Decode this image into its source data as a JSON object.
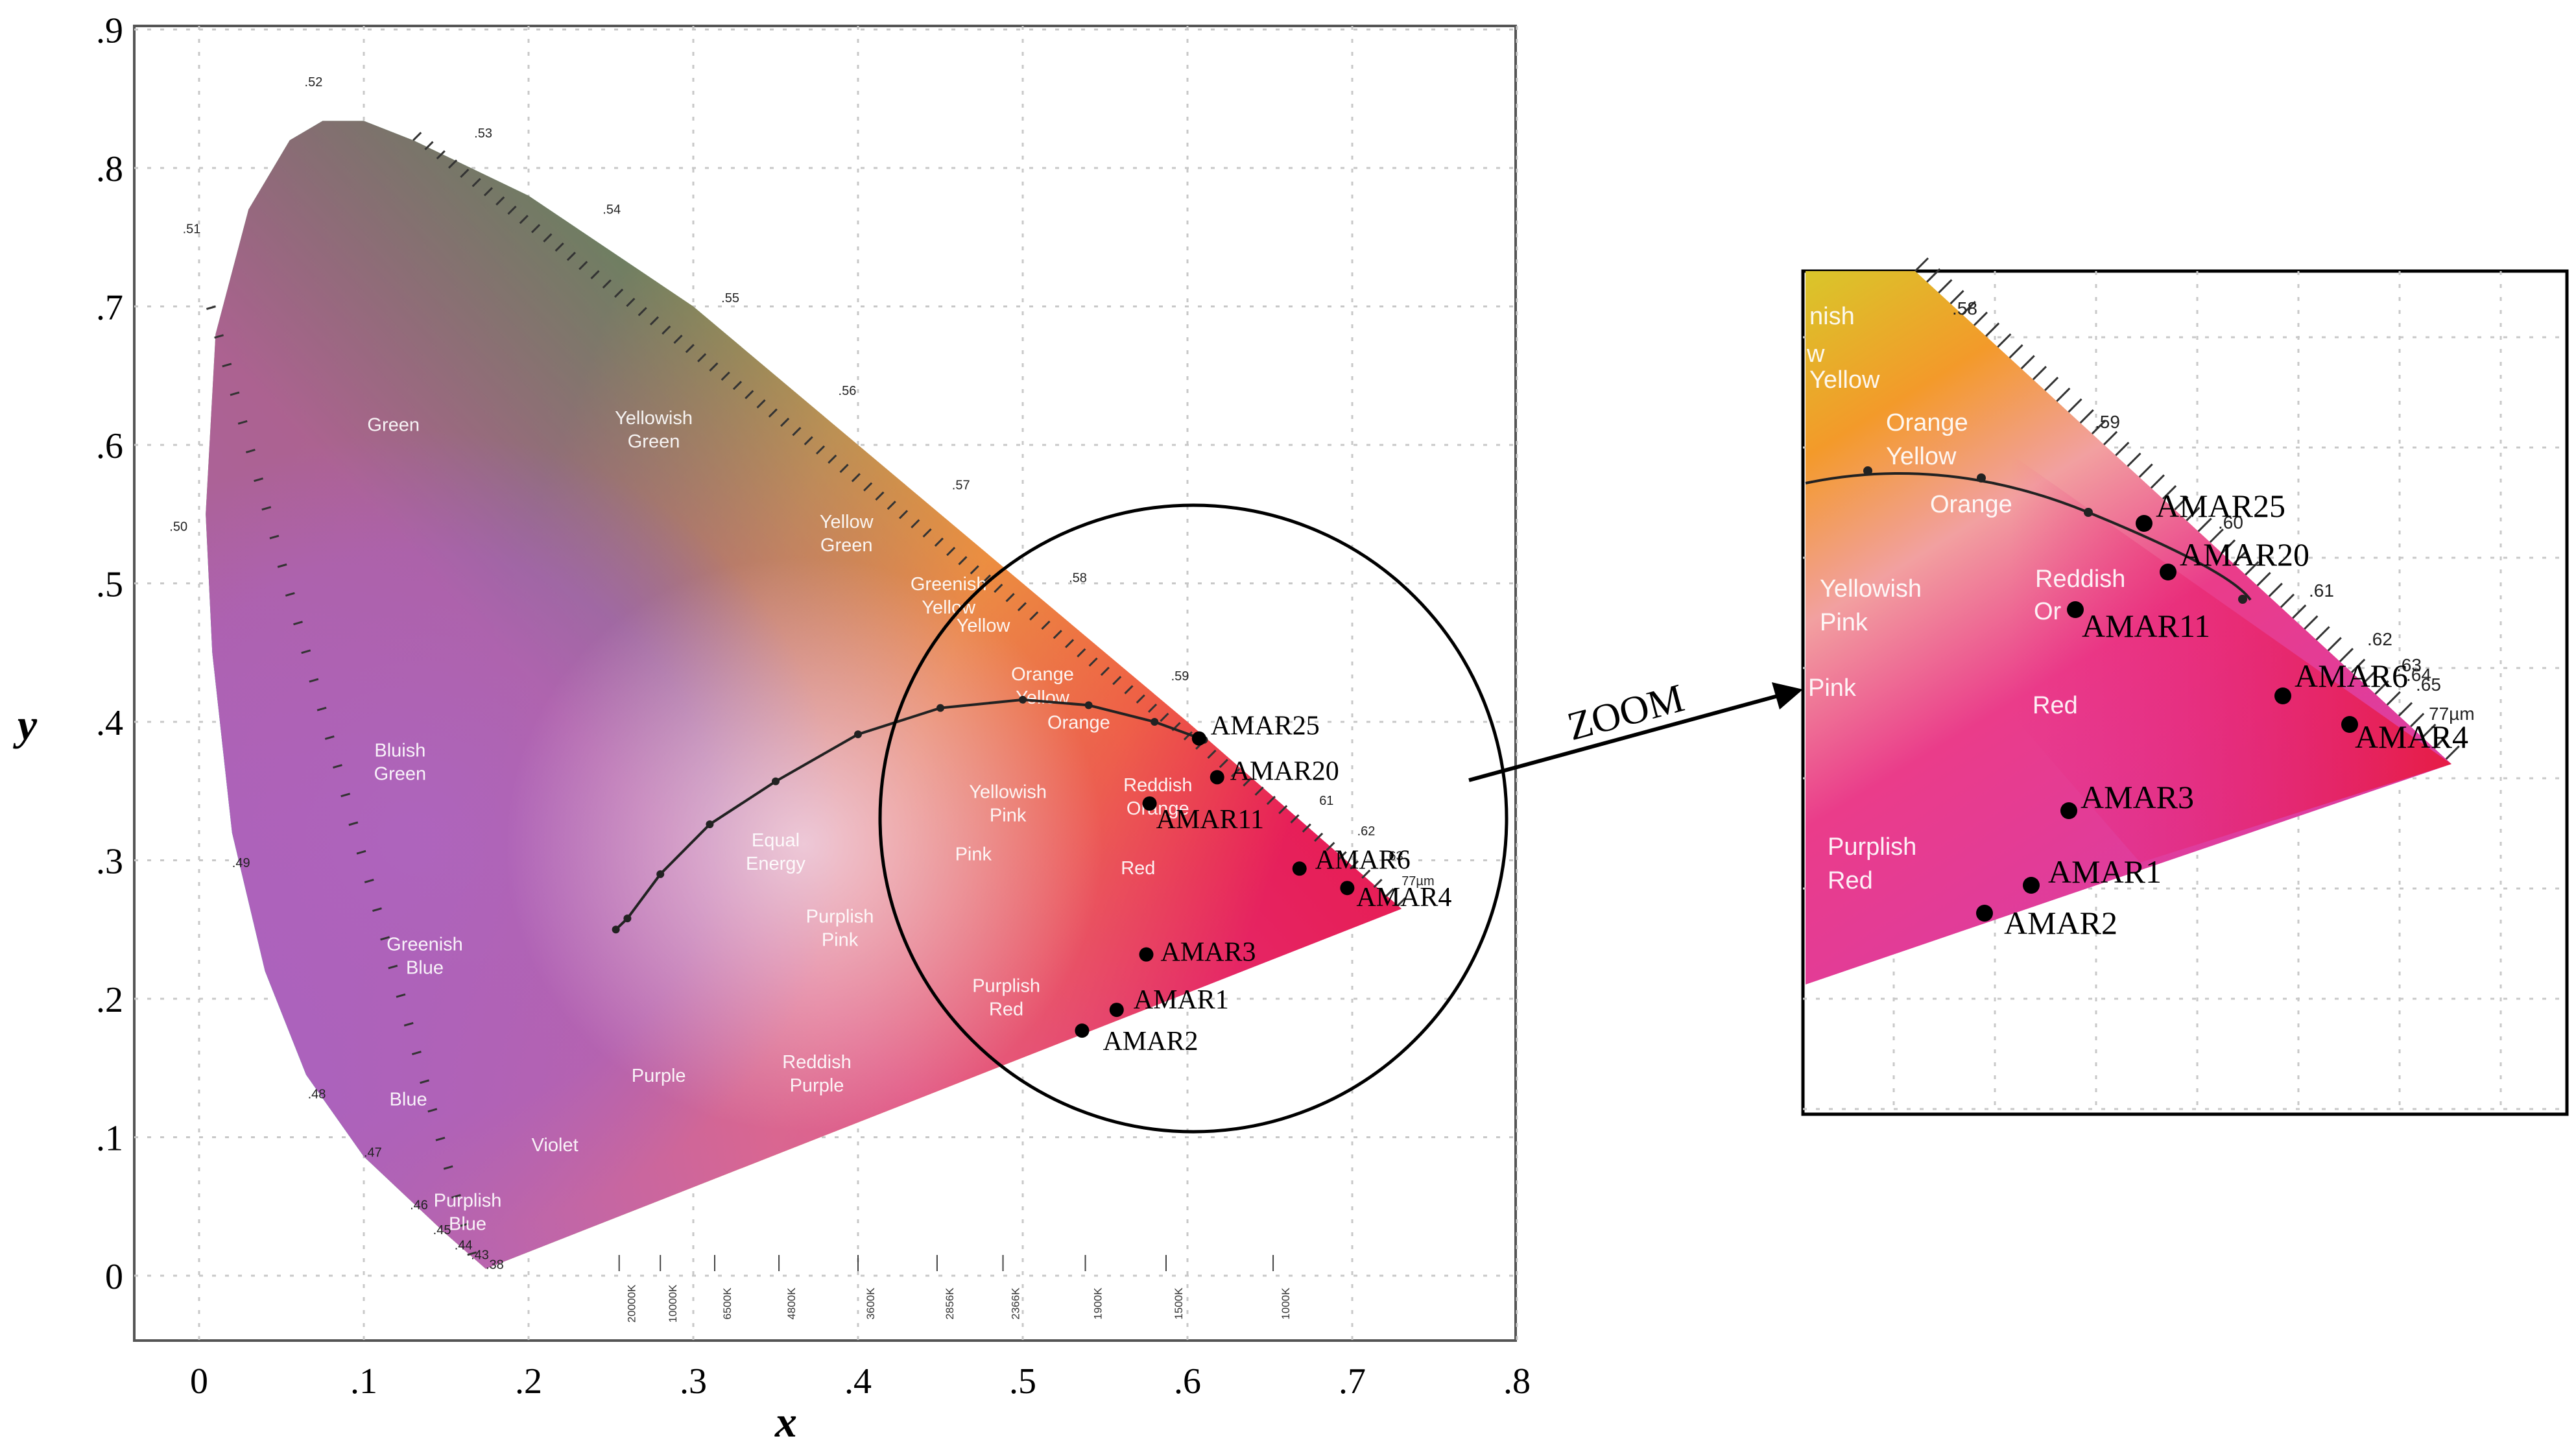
{
  "chart_data": [
    {
      "type": "scatter",
      "title": "",
      "xlabel": "x",
      "ylabel": "y",
      "xlim": [
        -0.04,
        0.8
      ],
      "ylim": [
        -0.05,
        0.9
      ],
      "grid": true,
      "x_ticks": [
        "0",
        ".1",
        ".2",
        ".3",
        ".4",
        ".5",
        ".6",
        ".7",
        ".8"
      ],
      "y_ticks": [
        "0",
        ".1",
        ".2",
        ".3",
        ".4",
        ".5",
        ".6",
        ".7",
        ".8",
        ".9"
      ],
      "wavelength_labels": [
        {
          "text": ".38",
          "x": 0.174,
          "y": 0.005
        },
        {
          "text": ".43",
          "x": 0.165,
          "y": 0.012
        },
        {
          "text": ".44",
          "x": 0.155,
          "y": 0.019
        },
        {
          "text": ".45",
          "x": 0.142,
          "y": 0.03
        },
        {
          "text": ".46",
          "x": 0.128,
          "y": 0.048
        },
        {
          "text": ".47",
          "x": 0.1,
          "y": 0.086
        },
        {
          "text": ".48",
          "x": 0.066,
          "y": 0.128
        },
        {
          "text": ".49",
          "x": 0.02,
          "y": 0.295
        },
        {
          "text": ".50",
          "x": -0.018,
          "y": 0.538
        },
        {
          "text": ".51",
          "x": -0.01,
          "y": 0.753
        },
        {
          "text": ".52",
          "x": 0.064,
          "y": 0.859
        },
        {
          "text": ".53",
          "x": 0.167,
          "y": 0.822
        },
        {
          "text": ".54",
          "x": 0.245,
          "y": 0.767
        },
        {
          "text": ".55",
          "x": 0.317,
          "y": 0.703
        },
        {
          "text": ".56",
          "x": 0.388,
          "y": 0.636
        },
        {
          "text": ".57",
          "x": 0.457,
          "y": 0.568
        },
        {
          "text": ".58",
          "x": 0.528,
          "y": 0.501
        },
        {
          "text": ".59",
          "x": 0.59,
          "y": 0.43
        },
        {
          "text": "61",
          "x": 0.68,
          "y": 0.34
        },
        {
          "text": ".62",
          "x": 0.703,
          "y": 0.318
        },
        {
          "text": ".63",
          "x": 0.72,
          "y": 0.3
        },
        {
          "text": "77µm",
          "x": 0.73,
          "y": 0.282
        }
      ],
      "regions": [
        {
          "label": "Green",
          "x": 0.118,
          "y": 0.61
        },
        {
          "label": "Yellowish Green",
          "x": 0.276,
          "y": 0.615
        },
        {
          "label": "Yellow Green",
          "x": 0.393,
          "y": 0.54
        },
        {
          "label": "Greenish Yellow",
          "x": 0.455,
          "y": 0.495
        },
        {
          "label": "Yellow",
          "x": 0.476,
          "y": 0.465
        },
        {
          "label": "Orange Yellow",
          "x": 0.512,
          "y": 0.43
        },
        {
          "label": "Orange",
          "x": 0.534,
          "y": 0.395
        },
        {
          "label": "Bluish Green",
          "x": 0.122,
          "y": 0.375
        },
        {
          "label": "Equal Energy",
          "x": 0.35,
          "y": 0.31
        },
        {
          "label": "Yellowish Pink",
          "x": 0.491,
          "y": 0.345
        },
        {
          "label": "Reddish Orange",
          "x": 0.582,
          "y": 0.35
        },
        {
          "label": "Pink",
          "x": 0.47,
          "y": 0.3
        },
        {
          "label": "Red",
          "x": 0.57,
          "y": 0.29
        },
        {
          "label": "Greenish Blue",
          "x": 0.137,
          "y": 0.235
        },
        {
          "label": "Purplish Pink",
          "x": 0.389,
          "y": 0.255
        },
        {
          "label": "Purplish Red",
          "x": 0.49,
          "y": 0.205
        },
        {
          "label": "Reddish Purple",
          "x": 0.375,
          "y": 0.15
        },
        {
          "label": "Purple",
          "x": 0.279,
          "y": 0.14
        },
        {
          "label": "Blue",
          "x": 0.127,
          "y": 0.123
        },
        {
          "label": "Violet",
          "x": 0.216,
          "y": 0.09
        },
        {
          "label": "Purplish Blue",
          "x": 0.163,
          "y": 0.05
        }
      ],
      "planckian_locus": {
        "x": [
          0.253,
          0.26,
          0.28,
          0.31,
          0.35,
          0.4,
          0.45,
          0.5,
          0.54,
          0.58,
          0.61
        ],
        "y": [
          0.25,
          0.258,
          0.29,
          0.326,
          0.357,
          0.391,
          0.41,
          0.416,
          0.412,
          0.4,
          0.387
        ]
      },
      "cct_labels": [
        "20000K",
        "10000K",
        "6500K",
        "4800K",
        "3600K",
        "2856K",
        "2366K",
        "1900K",
        "1500K",
        "1000K"
      ],
      "cct_x": [
        0.255,
        0.28,
        0.313,
        0.352,
        0.4,
        0.448,
        0.488,
        0.538,
        0.587,
        0.652
      ],
      "points": [
        {
          "label": "AMAR25",
          "x": 0.607,
          "y": 0.388
        },
        {
          "label": "AMAR20",
          "x": 0.618,
          "y": 0.36
        },
        {
          "label": "AMAR11",
          "x": 0.577,
          "y": 0.341
        },
        {
          "label": "AMAR6",
          "x": 0.668,
          "y": 0.294
        },
        {
          "label": "AMAR4",
          "x": 0.697,
          "y": 0.28
        },
        {
          "label": "AMAR3",
          "x": 0.575,
          "y": 0.232
        },
        {
          "label": "AMAR1",
          "x": 0.557,
          "y": 0.192
        },
        {
          "label": "AMAR2",
          "x": 0.536,
          "y": 0.177
        }
      ]
    },
    {
      "type": "scatter",
      "title": "ZOOM",
      "points": [
        {
          "label": "AMAR25"
        },
        {
          "label": "AMAR20"
        },
        {
          "label": "AMAR11"
        },
        {
          "label": "AMAR6"
        },
        {
          "label": "AMAR4"
        },
        {
          "label": "AMAR3"
        },
        {
          "label": "AMAR1"
        },
        {
          "label": "AMAR2"
        }
      ],
      "wavelength_labels": [
        ".58",
        ".59",
        ".60",
        ".61",
        ".62",
        ".63",
        ".64",
        ".65",
        "77µm"
      ],
      "regions": [
        {
          "label": "nish"
        },
        {
          "label": "w"
        },
        {
          "label": "Yellow"
        },
        {
          "label": "Orange Yellow"
        },
        {
          "label": "Orange"
        },
        {
          "label": "Reddish"
        },
        {
          "label": "Or"
        },
        {
          "label": "Yellowish Pink"
        },
        {
          "label": "Pink"
        },
        {
          "label": "Red"
        },
        {
          "label": "Purplish Red"
        }
      ]
    }
  ]
}
